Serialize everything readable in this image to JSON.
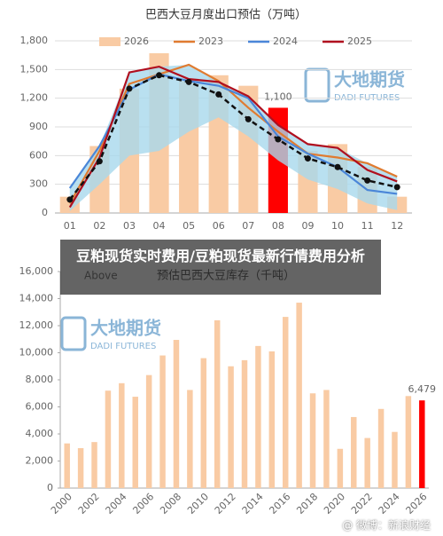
{
  "chart_data": [
    {
      "type": "bar",
      "title": "巴西大豆月度出口预估（万吨）",
      "categories": [
        "01",
        "02",
        "03",
        "04",
        "05",
        "06",
        "07",
        "08",
        "09",
        "10",
        "11",
        "12"
      ],
      "ylim": [
        0,
        1800
      ],
      "yticks": [
        0,
        300,
        600,
        900,
        {
          "value": 1200,
          "label": "1,200"
        },
        {
          "value": 1500,
          "label": "1,500"
        },
        {
          "value": 1800,
          "label": "1,800"
        }
      ],
      "grid": true,
      "logo": {
        "name": "大地期货",
        "sub": "DADI FUTURES"
      },
      "range_band": {
        "color": "#a8d8ec",
        "lower": [
          20,
          300,
          600,
          650,
          850,
          1000,
          800,
          550,
          350,
          250,
          100,
          30
        ],
        "upper": [
          260,
          700,
          1470,
          1530,
          1550,
          1380,
          1220,
          920,
          720,
          680,
          520,
          380
        ]
      },
      "series": [
        {
          "name": "2026",
          "type": "bar",
          "color": "#f9cba4",
          "values": [
            170,
            700,
            1300,
            1670,
            1410,
            1440,
            1330,
            1100,
            650,
            720,
            480,
            170
          ],
          "highlight": {
            "index": 7,
            "color": "#ff0000"
          },
          "value_labels": [
            null,
            null,
            null,
            null,
            null,
            null,
            null,
            "1,100",
            null,
            null,
            null,
            null
          ]
        },
        {
          "name": "2023",
          "type": "line",
          "color": "#e07b30",
          "values": [
            100,
            650,
            1350,
            1450,
            1550,
            1380,
            1100,
            850,
            620,
            580,
            520,
            380
          ]
        },
        {
          "name": "2024",
          "type": "line",
          "color": "#4a86d8",
          "values": [
            260,
            700,
            1290,
            1450,
            1380,
            1330,
            1200,
            800,
            620,
            480,
            240,
            200
          ]
        },
        {
          "name": "2025",
          "type": "line",
          "color": "#b00f1e",
          "values": [
            60,
            580,
            1470,
            1530,
            1400,
            1370,
            1220,
            920,
            720,
            680,
            450,
            330
          ]
        },
        {
          "type": "line",
          "color": "#111111",
          "dash": true,
          "markers": true,
          "values": [
            140,
            540,
            1300,
            1440,
            1370,
            1240,
            980,
            770,
            570,
            480,
            340,
            270
          ]
        }
      ]
    },
    {
      "type": "bar",
      "title": "预估巴西大豆库存（千吨）",
      "annotation": "Above",
      "categories": [
        "2000",
        null,
        "2002",
        null,
        "2004",
        null,
        "2006",
        null,
        "2008",
        null,
        "2010",
        null,
        "2012",
        null,
        "2014",
        null,
        "2016",
        null,
        "2018",
        null,
        "2020",
        null,
        "2022",
        null,
        "2024",
        null,
        "2026"
      ],
      "ylim": [
        0,
        16000
      ],
      "yticks": [
        0,
        {
          "value": 2000,
          "label": "2,000"
        },
        {
          "value": 4000,
          "label": "4,000"
        },
        {
          "value": 6000,
          "label": "6,000"
        },
        {
          "value": 8000,
          "label": "8,000"
        },
        {
          "value": 10000,
          "label": "10,000"
        },
        {
          "value": 12000,
          "label": "12,000"
        },
        {
          "value": 14000,
          "label": "14,000"
        },
        {
          "value": 16000,
          "label": "16,000"
        }
      ],
      "grid": false,
      "logo": {
        "name": "大地期货",
        "sub": "DADI FUTURES"
      },
      "series": [
        {
          "type": "bar",
          "color": "#f9cba4",
          "values": [
            3300,
            2950,
            3400,
            7200,
            7750,
            6750,
            8350,
            9800,
            10950,
            7250,
            9600,
            12400,
            9000,
            9450,
            10500,
            10100,
            12650,
            13700,
            7000,
            7250,
            2900,
            5250,
            3700,
            5850,
            4150,
            6800,
            6479
          ],
          "highlight": {
            "index": 26,
            "color": "#ff0000"
          },
          "value_labels": [
            null,
            null,
            null,
            null,
            null,
            null,
            null,
            null,
            null,
            null,
            null,
            null,
            null,
            null,
            null,
            null,
            null,
            null,
            null,
            null,
            null,
            null,
            null,
            null,
            null,
            null,
            "6,479"
          ]
        }
      ]
    }
  ],
  "overlay": {
    "headline": "豆粕现货实时费用/豆粕现货最新行情费用分析"
  },
  "watermark": "@ 微博：新浪财经"
}
